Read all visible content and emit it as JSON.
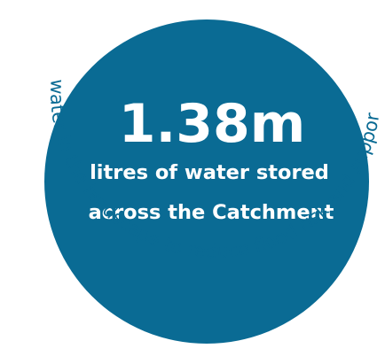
{
  "colors": {
    "circle_fill": "#0a6b94",
    "stat_text": "#ffffff",
    "arc_text": "#0a6b94"
  },
  "stat": {
    "value": "1.38m",
    "line1": "litres of water stored",
    "line2": "across the Catchment"
  },
  "arc_caption": "Holding water in the landscape to reduce flood risk and support nature"
}
